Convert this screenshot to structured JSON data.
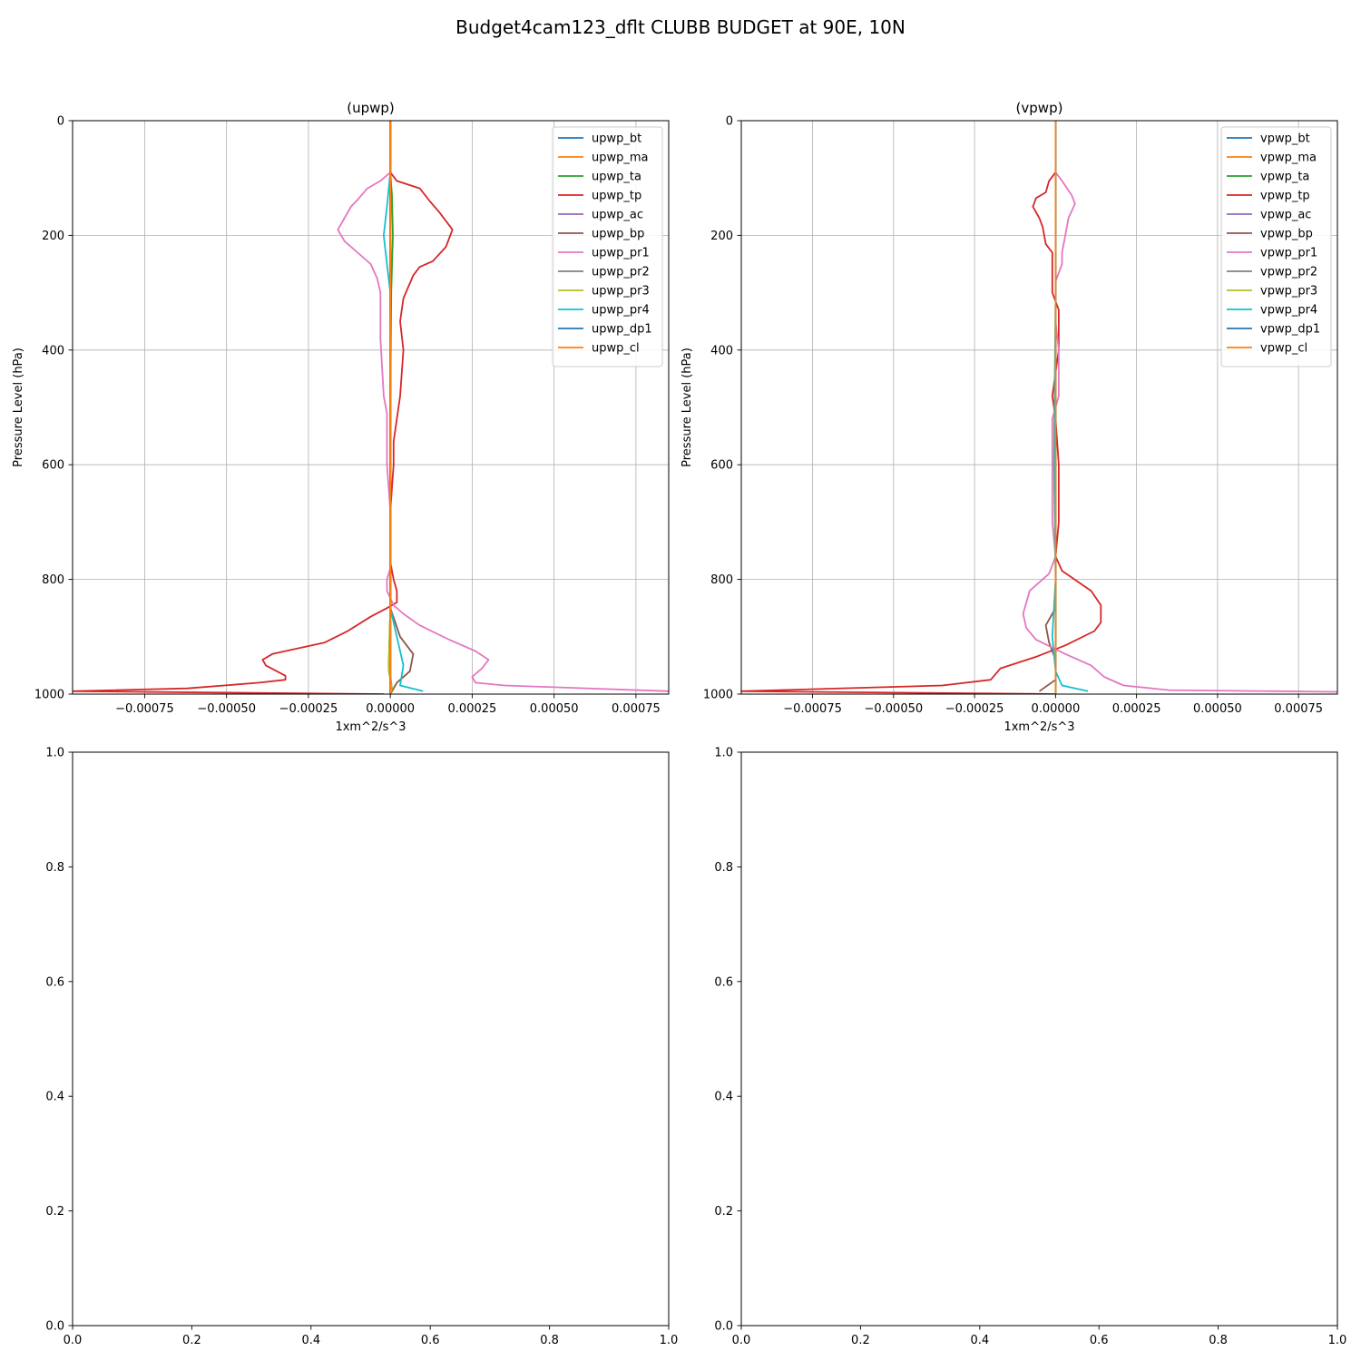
{
  "figure": {
    "suptitle": "Budget4cam123_dflt CLUBB BUDGET at 90E, 10N"
  },
  "colors": [
    "#1f77b4",
    "#ff7f0e",
    "#2ca02c",
    "#d62728",
    "#9467bd",
    "#8c564b",
    "#e377c2",
    "#7f7f7f",
    "#bcbd22",
    "#17becf",
    "#1f77b4",
    "#ff7f0e"
  ],
  "chart_data": [
    {
      "type": "line",
      "title": "(upwp)",
      "xlabel": "1xm^2/s^3",
      "ylabel": "Pressure Level (hPa)",
      "xlim": [
        -0.00097,
        0.00085
      ],
      "ylim": [
        1000,
        0
      ],
      "xticks": [
        -0.00075,
        -0.0005,
        -0.00025,
        0.0,
        0.00025,
        0.0005,
        0.00075
      ],
      "xtick_labels": [
        "−0.00075",
        "−0.00050",
        "−0.00025",
        "0.00000",
        "0.00025",
        "0.00050",
        "0.00075"
      ],
      "yticks": [
        0,
        200,
        400,
        600,
        800,
        1000
      ],
      "ytick_labels": [
        "0",
        "200",
        "400",
        "600",
        "800",
        "1000"
      ],
      "grid": true,
      "legend": "top-right",
      "series": [
        {
          "name": "upwp_bt",
          "points": [
            [
              0,
              0
            ],
            [
              0,
              1000
            ]
          ]
        },
        {
          "name": "upwp_ma",
          "points": [
            [
              0,
              0
            ],
            [
              0,
              1000
            ]
          ]
        },
        {
          "name": "upwp_ta",
          "points": [
            [
              0,
              0
            ],
            [
              0,
              90
            ],
            [
              5e-06,
              130
            ],
            [
              8e-06,
              200
            ],
            [
              3e-06,
              300
            ],
            [
              0,
              500
            ],
            [
              0,
              850
            ],
            [
              -5e-06,
              950
            ],
            [
              5e-06,
              990
            ],
            [
              0,
              1000
            ]
          ]
        },
        {
          "name": "upwp_tp",
          "points": [
            [
              0,
              0
            ],
            [
              0,
              90
            ],
            [
              2e-05,
              105
            ],
            [
              9e-05,
              118
            ],
            [
              0.00012,
              140
            ],
            [
              0.00015,
              160
            ],
            [
              0.00019,
              190
            ],
            [
              0.00017,
              220
            ],
            [
              0.00013,
              245
            ],
            [
              9e-05,
              255
            ],
            [
              7e-05,
              270
            ],
            [
              4e-05,
              310
            ],
            [
              3e-05,
              350
            ],
            [
              4e-05,
              400
            ],
            [
              3e-05,
              480
            ],
            [
              1e-05,
              560
            ],
            [
              1e-05,
              600
            ],
            [
              0,
              680
            ],
            [
              0,
              770
            ],
            [
              1e-05,
              800
            ],
            [
              2e-05,
              820
            ],
            [
              2e-05,
              840
            ],
            [
              -1e-05,
              850
            ],
            [
              -6e-05,
              865
            ],
            [
              -0.00013,
              890
            ],
            [
              -0.0002,
              910
            ],
            [
              -0.00036,
              930
            ],
            [
              -0.00039,
              940
            ],
            [
              -0.00038,
              950
            ],
            [
              -0.00032,
              968
            ],
            [
              -0.00032,
              975
            ],
            [
              -0.0004,
              980
            ],
            [
              -0.00062,
              990
            ],
            [
              -0.00097,
              995
            ],
            [
              -2e-05,
              1000
            ]
          ]
        },
        {
          "name": "upwp_ac",
          "points": [
            [
              0,
              0
            ],
            [
              0,
              1000
            ]
          ]
        },
        {
          "name": "upwp_bp",
          "points": [
            [
              0,
              0
            ],
            [
              0,
              850
            ],
            [
              3e-05,
              900
            ],
            [
              7e-05,
              930
            ],
            [
              6e-05,
              960
            ],
            [
              2e-05,
              980
            ],
            [
              0,
              1000
            ]
          ]
        },
        {
          "name": "upwp_pr1",
          "points": [
            [
              0,
              0
            ],
            [
              0,
              90
            ],
            [
              -3e-05,
              105
            ],
            [
              -7e-05,
              118
            ],
            [
              -0.0001,
              138
            ],
            [
              -0.00012,
              150
            ],
            [
              -0.00015,
              180
            ],
            [
              -0.00016,
              190
            ],
            [
              -0.00014,
              210
            ],
            [
              -9e-05,
              235
            ],
            [
              -6e-05,
              250
            ],
            [
              -4e-05,
              275
            ],
            [
              -3e-05,
              300
            ],
            [
              -3e-05,
              380
            ],
            [
              -2e-05,
              480
            ],
            [
              -1e-05,
              510
            ],
            [
              -1e-05,
              600
            ],
            [
              0,
              680
            ],
            [
              0,
              780
            ],
            [
              -1e-05,
              800
            ],
            [
              -1e-05,
              820
            ],
            [
              1e-05,
              845
            ],
            [
              4e-05,
              860
            ],
            [
              9e-05,
              880
            ],
            [
              0.00018,
              905
            ],
            [
              0.00026,
              925
            ],
            [
              0.0003,
              940
            ],
            [
              0.00028,
              955
            ],
            [
              0.00025,
              970
            ],
            [
              0.00026,
              980
            ],
            [
              0.00035,
              985
            ],
            [
              0.00085,
              995
            ]
          ]
        },
        {
          "name": "upwp_pr2",
          "points": [
            [
              0,
              0
            ],
            [
              0,
              1000
            ]
          ]
        },
        {
          "name": "upwp_pr3",
          "points": [
            [
              0,
              0
            ],
            [
              0,
              850
            ],
            [
              -5e-06,
              960
            ],
            [
              5e-06,
              990
            ],
            [
              0,
              1000
            ]
          ]
        },
        {
          "name": "upwp_pr4",
          "points": [
            [
              0,
              0
            ],
            [
              0,
              90
            ],
            [
              -1e-05,
              150
            ],
            [
              -2e-05,
              200
            ],
            [
              -1e-05,
              250
            ],
            [
              0,
              300
            ],
            [
              0,
              850
            ],
            [
              2e-05,
              900
            ],
            [
              4e-05,
              950
            ],
            [
              3e-05,
              985
            ],
            [
              0.0001,
              995
            ]
          ]
        },
        {
          "name": "upwp_dp1",
          "points": [
            [
              0,
              0
            ],
            [
              0,
              1000
            ]
          ]
        },
        {
          "name": "upwp_cl",
          "points": [
            [
              0,
              0
            ],
            [
              0,
              1000
            ]
          ]
        }
      ]
    },
    {
      "type": "line",
      "title": "(vpwp)",
      "xlabel": "1xm^2/s^3",
      "ylabel": "Pressure Level (hPa)",
      "xlim": [
        -0.00097,
        0.00087
      ],
      "ylim": [
        1000,
        0
      ],
      "xticks": [
        -0.00075,
        -0.0005,
        -0.00025,
        0.0,
        0.00025,
        0.0005,
        0.00075
      ],
      "xtick_labels": [
        "−0.00075",
        "−0.00050",
        "−0.00025",
        "0.00000",
        "0.00025",
        "0.00050",
        "0.00075"
      ],
      "yticks": [
        0,
        200,
        400,
        600,
        800,
        1000
      ],
      "ytick_labels": [
        "0",
        "200",
        "400",
        "600",
        "800",
        "1000"
      ],
      "grid": true,
      "legend": "top-right",
      "series": [
        {
          "name": "vpwp_bt",
          "points": [
            [
              0,
              0
            ],
            [
              0,
              1000
            ]
          ]
        },
        {
          "name": "vpwp_ma",
          "points": [
            [
              0,
              0
            ],
            [
              0,
              1000
            ]
          ]
        },
        {
          "name": "vpwp_ta",
          "points": [
            [
              0,
              0
            ],
            [
              0,
              1000
            ]
          ]
        },
        {
          "name": "vpwp_tp",
          "points": [
            [
              0,
              0
            ],
            [
              0,
              90
            ],
            [
              -2e-05,
              105
            ],
            [
              -3e-05,
              125
            ],
            [
              -6e-05,
              135
            ],
            [
              -7e-05,
              150
            ],
            [
              -5e-05,
              170
            ],
            [
              -4e-05,
              185
            ],
            [
              -3e-05,
              215
            ],
            [
              -1e-05,
              230
            ],
            [
              -1e-05,
              300
            ],
            [
              1e-05,
              330
            ],
            [
              1e-05,
              400
            ],
            [
              -1e-05,
              480
            ],
            [
              0,
              520
            ],
            [
              1e-05,
              600
            ],
            [
              1e-05,
              700
            ],
            [
              0,
              760
            ],
            [
              2e-05,
              785
            ],
            [
              0.00011,
              820
            ],
            [
              0.00014,
              845
            ],
            [
              0.00014,
              875
            ],
            [
              0.00012,
              890
            ],
            [
              3e-05,
              915
            ],
            [
              -6e-05,
              935
            ],
            [
              -0.00017,
              955
            ],
            [
              -0.0002,
              975
            ],
            [
              -0.00035,
              985
            ],
            [
              -0.00097,
              995
            ],
            [
              0,
              1000
            ]
          ]
        },
        {
          "name": "vpwp_ac",
          "points": [
            [
              0,
              0
            ],
            [
              0,
              1000
            ]
          ]
        },
        {
          "name": "vpwp_bp",
          "points": [
            [
              0,
              0
            ],
            [
              0,
              850
            ],
            [
              -3e-05,
              880
            ],
            [
              -2e-05,
              910
            ],
            [
              0,
              940
            ],
            [
              0,
              975
            ],
            [
              -5e-05,
              995
            ]
          ]
        },
        {
          "name": "vpwp_pr1",
          "points": [
            [
              0,
              0
            ],
            [
              0,
              90
            ],
            [
              2e-05,
              105
            ],
            [
              5e-05,
              130
            ],
            [
              6e-05,
              145
            ],
            [
              4e-05,
              170
            ],
            [
              3e-05,
              200
            ],
            [
              2e-05,
              230
            ],
            [
              2e-05,
              250
            ],
            [
              0,
              280
            ],
            [
              0,
              350
            ],
            [
              1e-05,
              400
            ],
            [
              1e-05,
              480
            ],
            [
              -1e-05,
              520
            ],
            [
              -1e-05,
              600
            ],
            [
              -1e-05,
              700
            ],
            [
              0,
              760
            ],
            [
              -2e-05,
              790
            ],
            [
              -8e-05,
              820
            ],
            [
              -0.0001,
              860
            ],
            [
              -9e-05,
              885
            ],
            [
              -6e-05,
              905
            ],
            [
              3e-05,
              930
            ],
            [
              0.00011,
              950
            ],
            [
              0.00015,
              970
            ],
            [
              0.00021,
              985
            ],
            [
              0.00035,
              993
            ],
            [
              0.00087,
              996
            ]
          ]
        },
        {
          "name": "vpwp_pr2",
          "points": [
            [
              0,
              0
            ],
            [
              0,
              1000
            ]
          ]
        },
        {
          "name": "vpwp_pr3",
          "points": [
            [
              0,
              0
            ],
            [
              0,
              1000
            ]
          ]
        },
        {
          "name": "vpwp_pr4",
          "points": [
            [
              0,
              0
            ],
            [
              0,
              300
            ],
            [
              -5e-06,
              600
            ],
            [
              0,
              800
            ],
            [
              -5e-06,
              850
            ],
            [
              -1e-05,
              900
            ],
            [
              0,
              960
            ],
            [
              2e-05,
              985
            ],
            [
              0.0001,
              995
            ]
          ]
        },
        {
          "name": "vpwp_dp1",
          "points": [
            [
              0,
              0
            ],
            [
              0,
              1000
            ]
          ]
        },
        {
          "name": "vpwp_cl",
          "points": [
            [
              0,
              0
            ],
            [
              0,
              1000
            ]
          ]
        }
      ]
    },
    {
      "type": "line",
      "title": "",
      "xlabel": "",
      "ylabel": "",
      "xlim": [
        0,
        1
      ],
      "ylim": [
        0,
        1
      ],
      "xticks": [
        0,
        0.2,
        0.4,
        0.6,
        0.8,
        1.0
      ],
      "xtick_labels": [
        "0.0",
        "0.2",
        "0.4",
        "0.6",
        "0.8",
        "1.0"
      ],
      "yticks": [
        0,
        0.2,
        0.4,
        0.6,
        0.8,
        1.0
      ],
      "ytick_labels": [
        "0.0",
        "0.2",
        "0.4",
        "0.6",
        "0.8",
        "1.0"
      ],
      "grid": false,
      "series": []
    },
    {
      "type": "line",
      "title": "",
      "xlabel": "",
      "ylabel": "",
      "xlim": [
        0,
        1
      ],
      "ylim": [
        0,
        1
      ],
      "xticks": [
        0,
        0.2,
        0.4,
        0.6,
        0.8,
        1.0
      ],
      "xtick_labels": [
        "0.0",
        "0.2",
        "0.4",
        "0.6",
        "0.8",
        "1.0"
      ],
      "yticks": [
        0,
        0.2,
        0.4,
        0.6,
        0.8,
        1.0
      ],
      "ytick_labels": [
        "0.0",
        "0.2",
        "0.4",
        "0.6",
        "0.8",
        "1.0"
      ],
      "grid": false,
      "series": []
    }
  ]
}
